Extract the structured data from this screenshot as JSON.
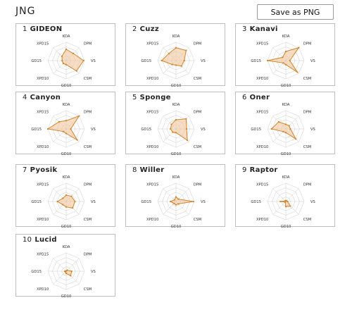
{
  "page": {
    "title": "JNG"
  },
  "toolbar": {
    "save_label": "Save as PNG"
  },
  "colors": {
    "fill": "#f2c79b",
    "stroke": "#d0852b",
    "grid": "#cccccc"
  },
  "chart_data": {
    "type": "radar",
    "axes": [
      "KDA",
      "DPM",
      "VS",
      "CSM",
      "GD10",
      "XPD10",
      "GD15",
      "XPD15"
    ],
    "range": [
      0,
      1
    ],
    "players": [
      {
        "rank": "1",
        "name": "GIDEON",
        "values": [
          0.62,
          0.55,
          0.95,
          0.8,
          0.22,
          0.22,
          0.22,
          0.33
        ]
      },
      {
        "rank": "2",
        "name": "Cuzz",
        "values": [
          0.7,
          0.78,
          0.45,
          0.42,
          0.25,
          0.3,
          0.78,
          0.55
        ]
      },
      {
        "rank": "3",
        "name": "Kanavi",
        "values": [
          0.5,
          1.0,
          0.22,
          0.9,
          0.22,
          0.18,
          1.0,
          0.25
        ]
      },
      {
        "rank": "4",
        "name": "Canyon",
        "values": [
          0.45,
          1.0,
          0.25,
          0.85,
          0.25,
          0.2,
          1.0,
          0.55
        ]
      },
      {
        "rank": "5",
        "name": "Sponge",
        "values": [
          0.5,
          0.78,
          0.58,
          0.88,
          0.2,
          0.25,
          0.3,
          0.35
        ]
      },
      {
        "rank": "6",
        "name": "Oner",
        "values": [
          0.25,
          0.25,
          0.25,
          0.78,
          0.2,
          0.2,
          0.78,
          0.55
        ]
      },
      {
        "rank": "7",
        "name": "Pyosik",
        "values": [
          0.35,
          0.4,
          0.48,
          0.5,
          0.3,
          0.25,
          0.48,
          0.25
        ]
      },
      {
        "rank": "8",
        "name": "Willer",
        "values": [
          0.25,
          0.18,
          0.95,
          0.18,
          0.18,
          0.15,
          0.3,
          0.12
        ]
      },
      {
        "rank": "9",
        "name": "Raptor",
        "values": [
          0.05,
          0.05,
          0.1,
          0.35,
          0.28,
          0.05,
          0.3,
          0.05
        ]
      },
      {
        "rank": "10",
        "name": "Lucid",
        "values": [
          0.02,
          0.08,
          0.3,
          0.35,
          0.12,
          0.05,
          0.08,
          0.02
        ]
      }
    ]
  }
}
